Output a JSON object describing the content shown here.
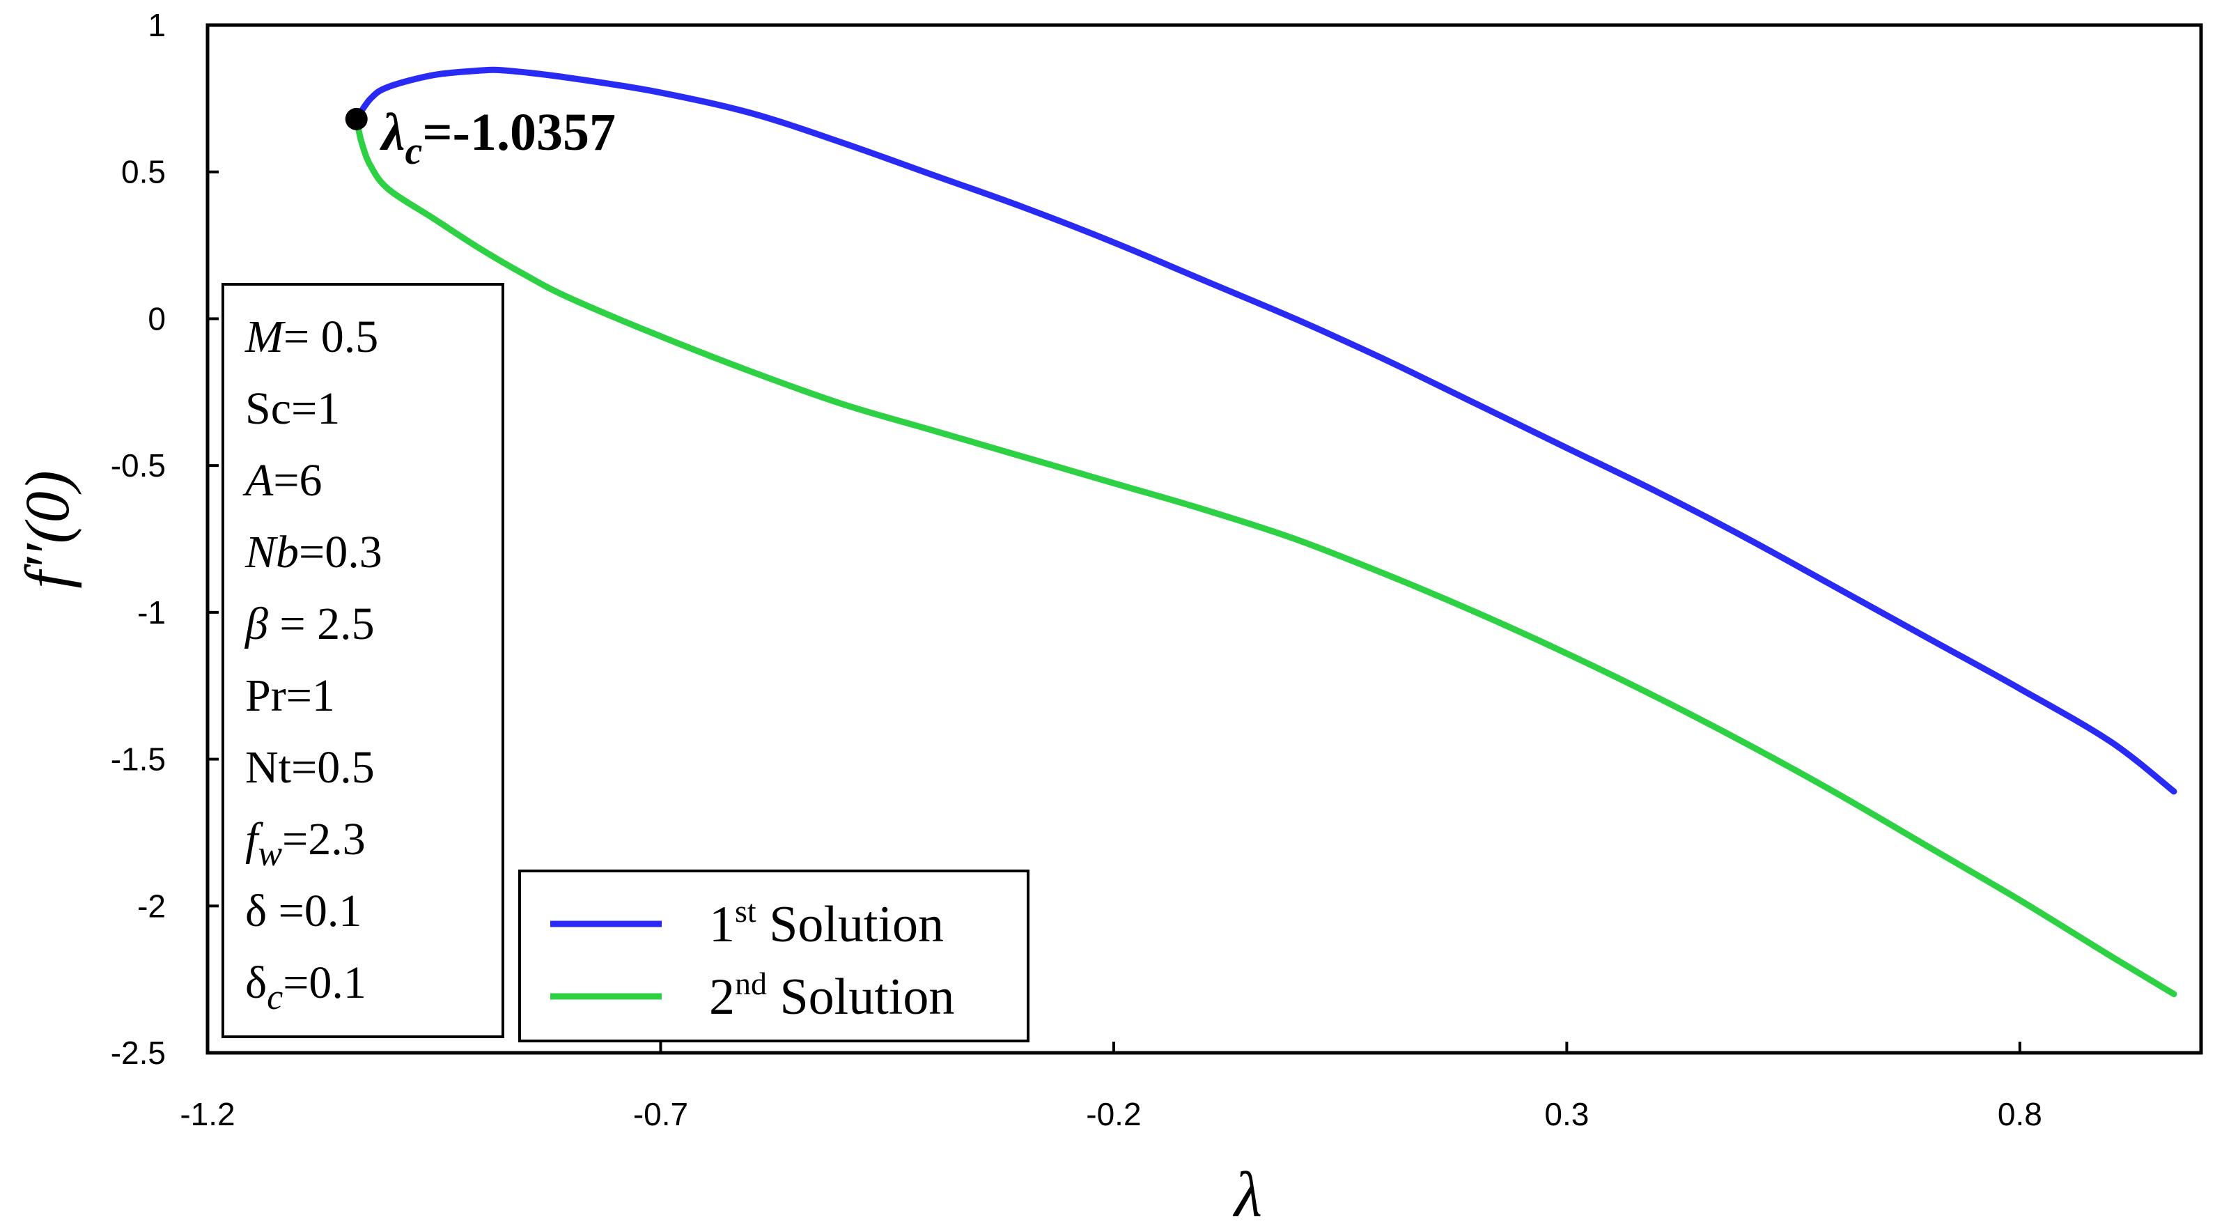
{
  "chart_data": {
    "type": "line",
    "title": "",
    "xlabel": "λ",
    "ylabel": "f′′(0)",
    "xlim": [
      -1.2,
      1.0
    ],
    "ylim": [
      -2.5,
      1.0
    ],
    "xticks": [
      -1.2,
      -0.7,
      -0.2,
      0.3,
      0.8
    ],
    "xtick_labels": [
      "-1.2",
      "-0.7",
      "-0.2",
      "0.3",
      "0.8"
    ],
    "yticks": [
      1,
      0.5,
      0,
      -0.5,
      -1,
      -1.5,
      -2,
      -2.5
    ],
    "ytick_labels": [
      "1",
      "0.5",
      "0",
      "-0.5",
      "-1",
      "-1.5",
      "-2",
      "-2.5"
    ],
    "grid": false,
    "legend_position": "bottom-center",
    "series": [
      {
        "name": "1st Solution",
        "color": "#2a2af5",
        "x": [
          -1.0357,
          -1.02,
          -1.0,
          -0.95,
          -0.9,
          -0.87,
          -0.8,
          -0.7,
          -0.6,
          -0.5,
          -0.4,
          -0.3,
          -0.2,
          -0.1,
          0.0,
          0.1,
          0.2,
          0.3,
          0.4,
          0.5,
          0.6,
          0.7,
          0.8,
          0.9,
          0.97
        ],
        "y": [
          0.68,
          0.75,
          0.79,
          0.83,
          0.845,
          0.845,
          0.82,
          0.77,
          0.7,
          0.6,
          0.49,
          0.38,
          0.26,
          0.13,
          0.0,
          -0.14,
          -0.29,
          -0.44,
          -0.59,
          -0.75,
          -0.92,
          -1.09,
          -1.26,
          -1.44,
          -1.61
        ]
      },
      {
        "name": "2nd Solution",
        "color": "#2ed143",
        "x": [
          -1.0357,
          -1.03,
          -1.02,
          -1.0,
          -0.95,
          -0.9,
          -0.85,
          -0.8,
          -0.7,
          -0.6,
          -0.5,
          -0.4,
          -0.3,
          -0.2,
          -0.1,
          0.0,
          0.1,
          0.2,
          0.3,
          0.4,
          0.5,
          0.6,
          0.7,
          0.8,
          0.9,
          0.97
        ],
        "y": [
          0.68,
          0.6,
          0.52,
          0.44,
          0.34,
          0.24,
          0.15,
          0.07,
          -0.06,
          -0.18,
          -0.29,
          -0.38,
          -0.47,
          -0.56,
          -0.65,
          -0.75,
          -0.87,
          -1.0,
          -1.14,
          -1.29,
          -1.45,
          -1.62,
          -1.8,
          -1.98,
          -2.17,
          -2.3
        ]
      }
    ],
    "annotations": [
      {
        "label": "λc=-1.0357",
        "x": -1.0357,
        "y": 0.68,
        "text_main": "λ",
        "text_sub": "c",
        "text_rest": "=-1.0357"
      }
    ],
    "parameters": [
      {
        "name": "M",
        "value": "= 0.5",
        "italic": true
      },
      {
        "name": "Sc",
        "value": "=1",
        "italic": false
      },
      {
        "name": "A",
        "value": "=6",
        "italic": true
      },
      {
        "name": "Nb",
        "value": "=0.3",
        "italic": true
      },
      {
        "name": "β",
        "value": " = 2.5",
        "italic": true
      },
      {
        "name": "Pr",
        "value": "=1",
        "italic": false
      },
      {
        "name": "Nt",
        "value": "=0.5",
        "italic": false
      },
      {
        "name": "f",
        "sub": "w",
        "value": "=2.3",
        "italic": true
      },
      {
        "name": "δ",
        "value": " =0.1",
        "italic": false
      },
      {
        "name": "δ",
        "sub": "c",
        "value": "=0.1",
        "italic": false
      }
    ],
    "legend": [
      {
        "sup_base": "1",
        "sup": "st",
        "rest": " Solution",
        "color": "#2a2af5"
      },
      {
        "sup_base": "2",
        "sup": "nd",
        "rest": " Solution",
        "color": "#2ed143"
      }
    ]
  }
}
